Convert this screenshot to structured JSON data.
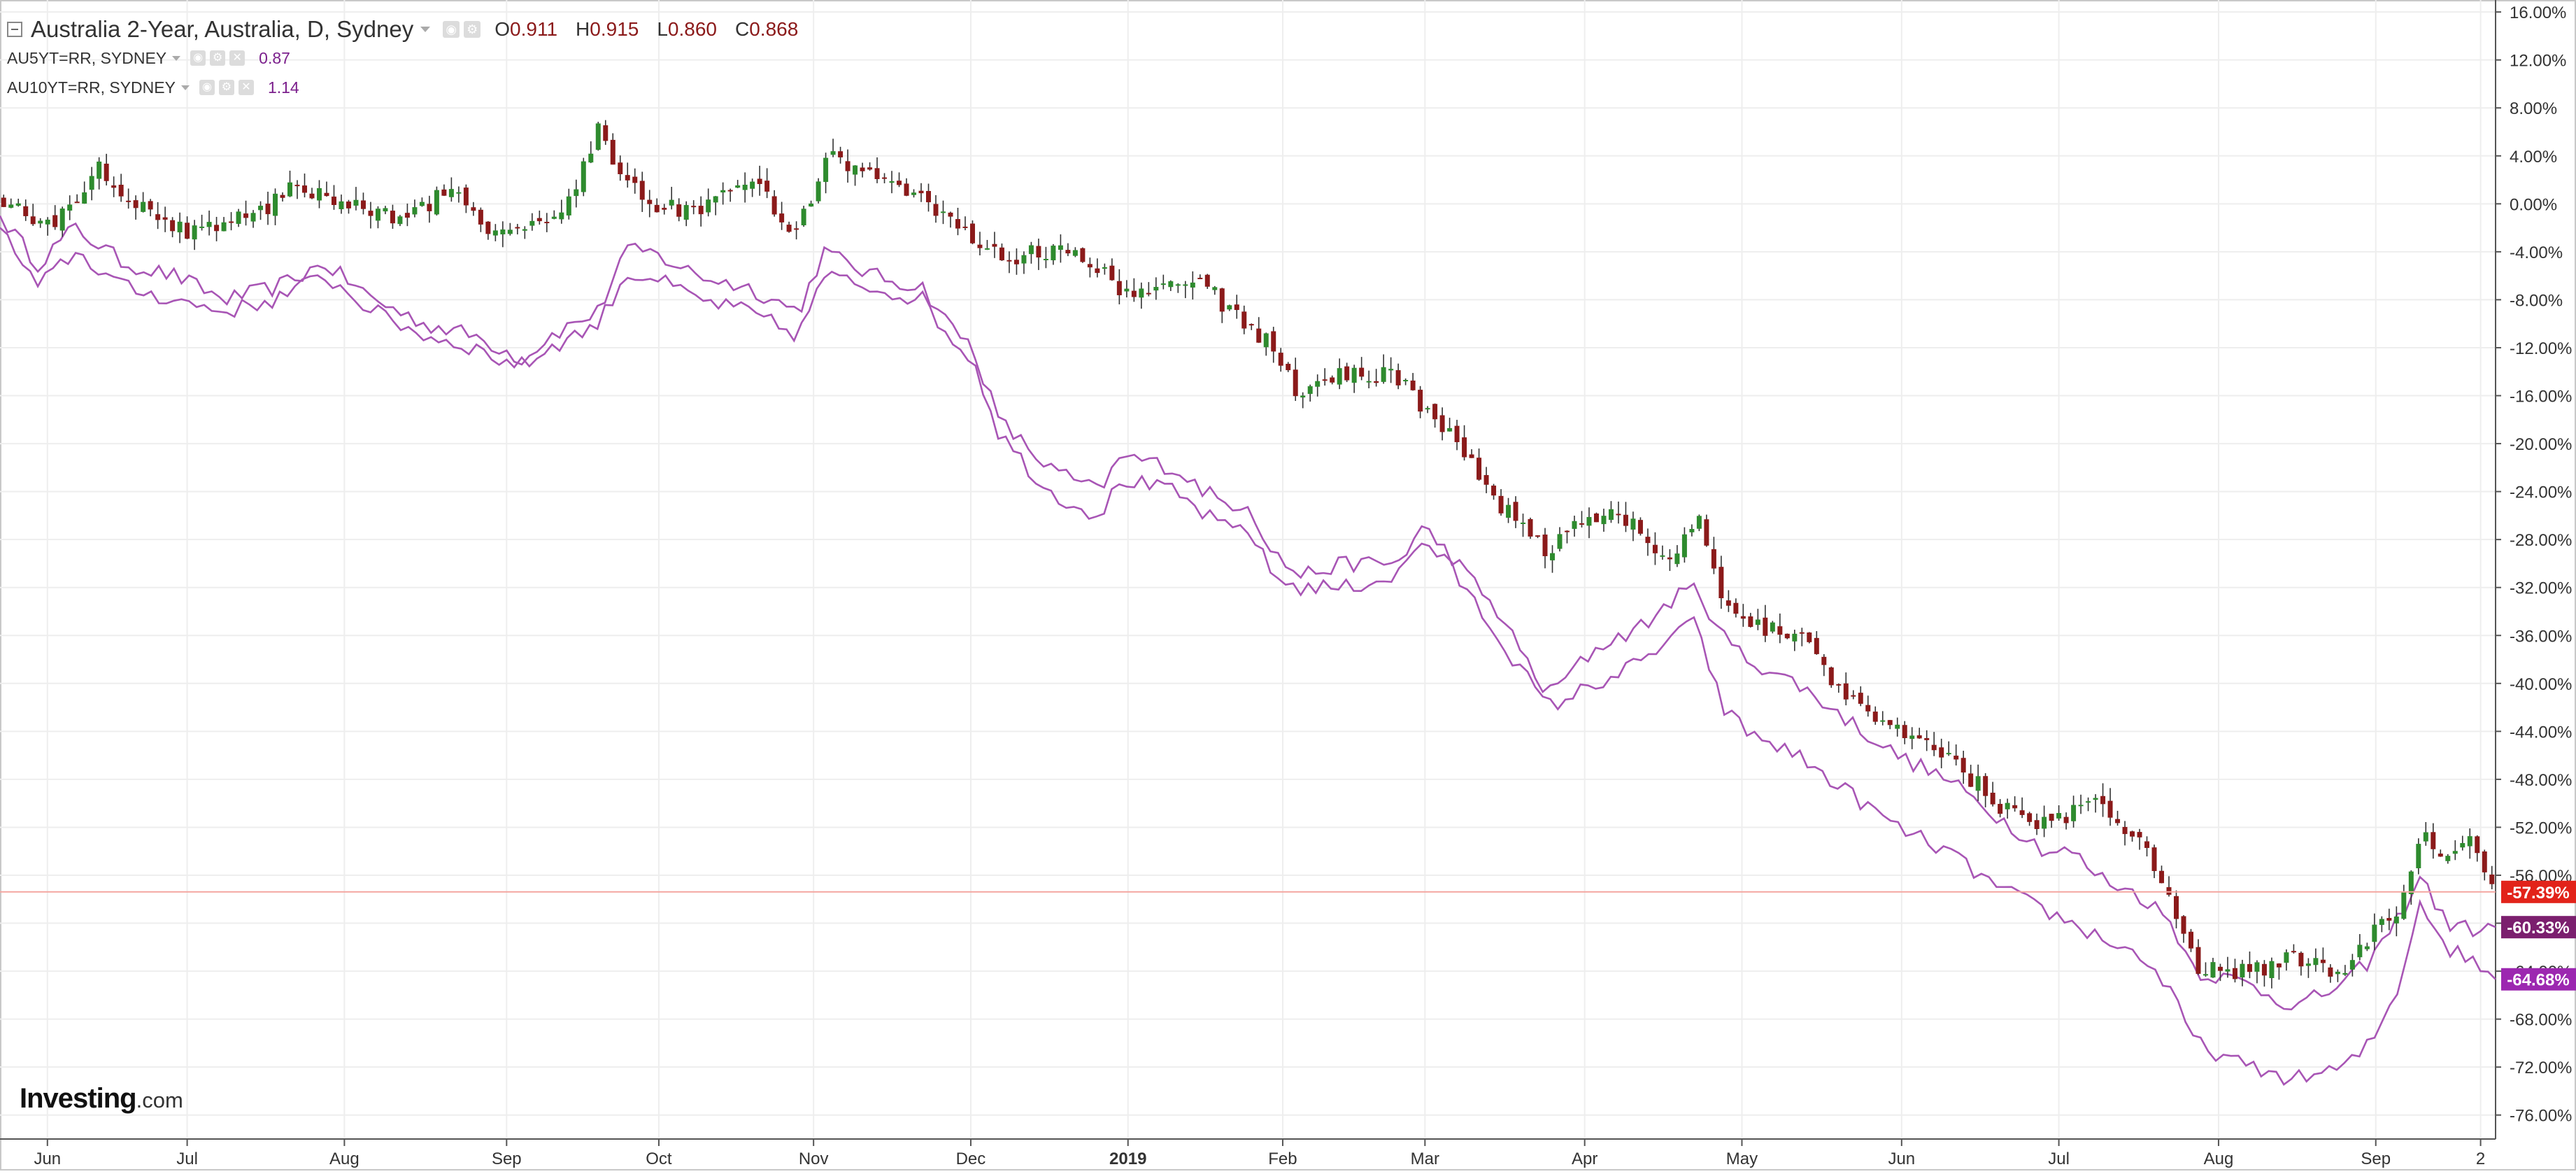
{
  "legend": {
    "title": "Australia 2-Year, Australia, D, Sydney",
    "ohlc": [
      {
        "key": "O",
        "value": "0.911"
      },
      {
        "key": "H",
        "value": "0.915"
      },
      {
        "key": "L",
        "value": "0.860"
      },
      {
        "key": "C",
        "value": "0.868"
      }
    ],
    "sub": [
      {
        "name": "AU5YT=RR, SYDNEY",
        "value": "0.87"
      },
      {
        "name": "AU10YT=RR, SYDNEY",
        "value": "1.14"
      }
    ]
  },
  "logo": {
    "brand": "Investing",
    "suffix": ".com"
  },
  "colors": {
    "up": "#2e8b2e",
    "down": "#8b1a1a",
    "compare": "#a855b5",
    "price_line": "#f4a6a0",
    "badge_price": "#e2231a",
    "badge_compare_1": "#7b1f6e",
    "badge_compare_2": "#9c27b0",
    "grid": "#eeeeee"
  },
  "chart_data": {
    "type": "line",
    "y_unit": "%",
    "ylim": [
      -78,
      17
    ],
    "y_ticks": [
      "16.00%",
      "12.00%",
      "8.00%",
      "4.00%",
      "0.00%",
      "-4.00%",
      "-8.00%",
      "-12.00%",
      "-16.00%",
      "-20.00%",
      "-24.00%",
      "-28.00%",
      "-32.00%",
      "-36.00%",
      "-40.00%",
      "-44.00%",
      "-48.00%",
      "-52.00%",
      "-56.00%",
      "-60.00%",
      "-64.00%",
      "-68.00%",
      "-72.00%",
      "-76.00%"
    ],
    "x_ticks": [
      {
        "label": "Jun",
        "pos": 0.019
      },
      {
        "label": "Jul",
        "pos": 0.075
      },
      {
        "label": "Aug",
        "pos": 0.138
      },
      {
        "label": "Sep",
        "pos": 0.203
      },
      {
        "label": "Oct",
        "pos": 0.264
      },
      {
        "label": "Nov",
        "pos": 0.326
      },
      {
        "label": "Dec",
        "pos": 0.389
      },
      {
        "label": "2019",
        "pos": 0.452,
        "bold": true
      },
      {
        "label": "Feb",
        "pos": 0.514
      },
      {
        "label": "Mar",
        "pos": 0.571
      },
      {
        "label": "Apr",
        "pos": 0.635
      },
      {
        "label": "May",
        "pos": 0.698
      },
      {
        "label": "Jun",
        "pos": 0.762
      },
      {
        "label": "Jul",
        "pos": 0.825
      },
      {
        "label": "Aug",
        "pos": 0.889
      },
      {
        "label": "Sep",
        "pos": 0.952
      },
      {
        "label": "2",
        "pos": 0.994
      }
    ],
    "grid": true,
    "current": {
      "price": {
        "value": -57.39,
        "label": "-57.39%"
      },
      "compare": [
        {
          "value": -60.33,
          "label": "-60.33%"
        },
        {
          "value": -64.68,
          "label": "-64.68%"
        }
      ]
    },
    "series": [
      {
        "name": "Australia 2-Year, Australia, D, Sydney",
        "style": "candlestick",
        "x": [
          0,
          0.02,
          0.04,
          0.06,
          0.08,
          0.1,
          0.12,
          0.14,
          0.16,
          0.18,
          0.2,
          0.22,
          0.23,
          0.24,
          0.25,
          0.26,
          0.28,
          0.3,
          0.32,
          0.33,
          0.35,
          0.37,
          0.39,
          0.4,
          0.42,
          0.44,
          0.45,
          0.46,
          0.48,
          0.5,
          0.51,
          0.52,
          0.54,
          0.56,
          0.58,
          0.6,
          0.62,
          0.63,
          0.65,
          0.67,
          0.68,
          0.69,
          0.7,
          0.72,
          0.74,
          0.76,
          0.78,
          0.8,
          0.82,
          0.84,
          0.86,
          0.87,
          0.88,
          0.9,
          0.92,
          0.94,
          0.95,
          0.96,
          0.97,
          0.98,
          0.99,
          1
        ],
        "values": [
          0.5,
          -2,
          3,
          -1,
          -2.5,
          -1,
          1.5,
          0,
          -1.5,
          1,
          -3,
          -1,
          1,
          6.5,
          2,
          0,
          -1,
          2,
          -2.5,
          4,
          2,
          0,
          -3,
          -4.5,
          -4,
          -5,
          -7.5,
          -7,
          -6.5,
          -10,
          -12,
          -16,
          -14,
          -14.5,
          -19,
          -25,
          -29,
          -27,
          -26,
          -30,
          -26,
          -33,
          -35,
          -36,
          -41,
          -44,
          -46,
          -50,
          -52,
          -50,
          -54,
          -58,
          -64,
          -64,
          -63,
          -64,
          -61,
          -59,
          -53,
          -54,
          -53.5,
          -57.39
        ]
      },
      {
        "name": "AU5YT=RR, SYDNEY",
        "style": "line",
        "x": [
          0,
          0.015,
          0.03,
          0.05,
          0.07,
          0.09,
          0.11,
          0.13,
          0.15,
          0.17,
          0.19,
          0.2,
          0.21,
          0.22,
          0.24,
          0.25,
          0.26,
          0.28,
          0.3,
          0.31,
          0.32,
          0.33,
          0.35,
          0.37,
          0.38,
          0.39,
          0.4,
          0.42,
          0.44,
          0.45,
          0.47,
          0.49,
          0.5,
          0.51,
          0.52,
          0.54,
          0.56,
          0.57,
          0.58,
          0.6,
          0.62,
          0.64,
          0.66,
          0.67,
          0.68,
          0.69,
          0.7,
          0.72,
          0.74,
          0.76,
          0.78,
          0.8,
          0.82,
          0.83,
          0.84,
          0.86,
          0.87,
          0.88,
          0.9,
          0.92,
          0.94,
          0.95,
          0.96,
          0.97,
          0.98,
          0.99,
          1
        ],
        "values": [
          -1,
          -5,
          -2,
          -5,
          -6,
          -8,
          -7,
          -5,
          -8,
          -10,
          -11,
          -12,
          -13,
          -11,
          -9,
          -4,
          -4,
          -6,
          -7,
          -8,
          -9,
          -4,
          -6,
          -7,
          -10,
          -12,
          -18,
          -22,
          -24,
          -21,
          -22,
          -25,
          -25,
          -29,
          -31,
          -30,
          -30,
          -27,
          -29,
          -34,
          -41,
          -37,
          -35,
          -33,
          -32,
          -36,
          -38,
          -40,
          -43,
          -46,
          -48,
          -51,
          -54,
          -54,
          -56,
          -58,
          -60,
          -64,
          -65,
          -67,
          -65,
          -63,
          -60,
          -56,
          -60,
          -60.5,
          -60.33
        ]
      },
      {
        "name": "AU10YT=RR, SYDNEY",
        "style": "line",
        "x": [
          0,
          0.015,
          0.03,
          0.05,
          0.07,
          0.09,
          0.11,
          0.13,
          0.15,
          0.17,
          0.19,
          0.2,
          0.21,
          0.22,
          0.24,
          0.25,
          0.26,
          0.28,
          0.3,
          0.31,
          0.32,
          0.33,
          0.35,
          0.37,
          0.38,
          0.39,
          0.4,
          0.42,
          0.44,
          0.45,
          0.47,
          0.49,
          0.5,
          0.51,
          0.52,
          0.54,
          0.56,
          0.57,
          0.58,
          0.6,
          0.62,
          0.64,
          0.66,
          0.67,
          0.68,
          0.69,
          0.7,
          0.72,
          0.74,
          0.76,
          0.78,
          0.8,
          0.82,
          0.83,
          0.84,
          0.86,
          0.87,
          0.88,
          0.9,
          0.92,
          0.94,
          0.95,
          0.96,
          0.97,
          0.98,
          0.99,
          1
        ],
        "values": [
          -2,
          -7,
          -4,
          -7,
          -8,
          -9,
          -8,
          -6,
          -9,
          -11,
          -12,
          -13,
          -13.5,
          -12,
          -10,
          -6,
          -6,
          -8,
          -9,
          -10,
          -11,
          -6,
          -7,
          -8,
          -11,
          -13,
          -19,
          -24,
          -26,
          -23,
          -24,
          -27,
          -27,
          -31,
          -32,
          -32,
          -31,
          -28,
          -30,
          -36,
          -42,
          -40,
          -38,
          -36,
          -35,
          -42,
          -44,
          -46,
          -49,
          -52,
          -54,
          -57,
          -59,
          -60,
          -61,
          -63,
          -66,
          -70,
          -72,
          -73,
          -72,
          -70,
          -66,
          -58,
          -62,
          -63,
          -64.68
        ]
      }
    ]
  }
}
